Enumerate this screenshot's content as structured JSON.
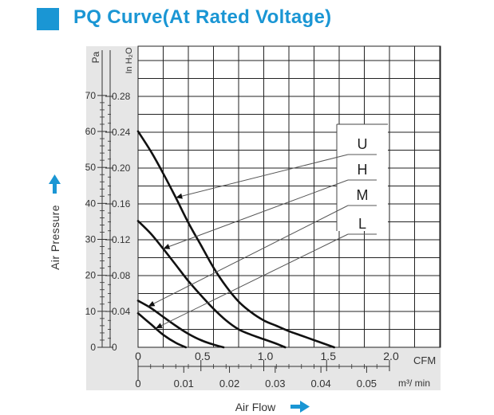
{
  "title": "PQ Curve(At Rated Voltage)",
  "colors": {
    "accent": "#1a96d4",
    "panel": "#e6e6e6",
    "grid": "#222222",
    "curve": "#111111"
  },
  "chart_data": {
    "type": "line",
    "title": "PQ Curve(At Rated Voltage)",
    "xlabel": "Air Flow",
    "ylabel": "Air Pressure",
    "x_unit_primary": "CFM",
    "x_unit_secondary": "m³/ min",
    "y_unit_primary": "Pa",
    "y_unit_secondary": "In H₂O",
    "xlim": [
      0,
      2.0
    ],
    "ylim_inh2o": [
      0,
      0.28
    ],
    "x_ticks_cfm": [
      "0",
      "0.5",
      "1.0",
      "1.5",
      "2.0"
    ],
    "x_ticks_m3min": [
      "0",
      "0.01",
      "0.02",
      "0.03",
      "0.04",
      "0.05"
    ],
    "y_ticks_pa": [
      "0",
      "10",
      "20",
      "30",
      "40",
      "50",
      "60",
      "70"
    ],
    "y_ticks_inh2o": [
      "0",
      "0.04",
      "0.08",
      "0.12",
      "0.16",
      "0.20",
      "0.24",
      "0.28"
    ],
    "grid": true,
    "legend_labels": [
      "U",
      "H",
      "M",
      "L"
    ],
    "series": [
      {
        "name": "U",
        "points": [
          [
            0.0,
            0.241
          ],
          [
            0.1,
            0.219
          ],
          [
            0.2,
            0.194
          ],
          [
            0.3,
            0.167
          ],
          [
            0.4,
            0.139
          ],
          [
            0.5,
            0.114
          ],
          [
            0.6,
            0.089
          ],
          [
            0.7,
            0.068
          ],
          [
            0.8,
            0.051
          ],
          [
            0.9,
            0.039
          ],
          [
            1.0,
            0.03
          ],
          [
            1.1,
            0.024
          ],
          [
            1.2,
            0.018
          ],
          [
            1.3,
            0.013
          ],
          [
            1.4,
            0.008
          ],
          [
            1.5,
            0.003
          ],
          [
            1.56,
            0.0
          ]
        ]
      },
      {
        "name": "H",
        "points": [
          [
            0.0,
            0.141
          ],
          [
            0.1,
            0.127
          ],
          [
            0.2,
            0.11
          ],
          [
            0.3,
            0.092
          ],
          [
            0.4,
            0.074
          ],
          [
            0.5,
            0.058
          ],
          [
            0.6,
            0.043
          ],
          [
            0.7,
            0.03
          ],
          [
            0.8,
            0.02
          ],
          [
            0.9,
            0.014
          ],
          [
            1.0,
            0.009
          ],
          [
            1.1,
            0.004
          ],
          [
            1.17,
            0.0
          ]
        ]
      },
      {
        "name": "M",
        "points": [
          [
            0.0,
            0.052
          ],
          [
            0.1,
            0.044
          ],
          [
            0.2,
            0.034
          ],
          [
            0.3,
            0.024
          ],
          [
            0.4,
            0.015
          ],
          [
            0.5,
            0.008
          ],
          [
            0.6,
            0.003
          ],
          [
            0.68,
            0.0
          ]
        ]
      },
      {
        "name": "L",
        "points": [
          [
            0.0,
            0.038
          ],
          [
            0.1,
            0.026
          ],
          [
            0.2,
            0.014
          ],
          [
            0.3,
            0.005
          ],
          [
            0.38,
            0.0
          ]
        ]
      }
    ]
  }
}
